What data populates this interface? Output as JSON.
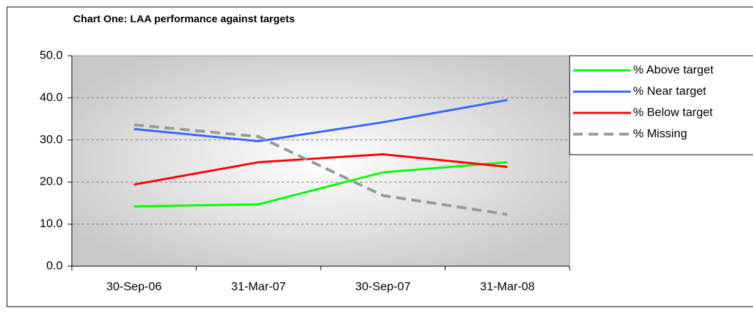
{
  "chart_data": {
    "type": "line",
    "title": "Chart One: LAA performance against targets",
    "categories": [
      "30-Sep-06",
      "31-Mar-07",
      "30-Sep-07",
      "31-Mar-08"
    ],
    "series": [
      {
        "name": "% Above target",
        "color": "#00ff00",
        "values": [
          14.2,
          14.7,
          22.3,
          24.7
        ]
      },
      {
        "name": "% Near target",
        "color": "#3366ff",
        "values": [
          32.6,
          29.7,
          34.2,
          39.5
        ]
      },
      {
        "name": "% Below target",
        "color": "#ff0000",
        "values": [
          19.4,
          24.7,
          26.6,
          23.6
        ]
      },
      {
        "name": "% Missing",
        "color": "#999999",
        "dashed": true,
        "values": [
          33.6,
          30.8,
          16.8,
          12.3
        ]
      }
    ],
    "ylim": [
      0,
      50
    ],
    "yticks": [
      {
        "value": 0,
        "label": "0.0"
      },
      {
        "value": 10,
        "label": "10.0"
      },
      {
        "value": 20,
        "label": "20.0"
      },
      {
        "value": 30,
        "label": "30.0"
      },
      {
        "value": 40,
        "label": "40.0"
      },
      {
        "value": 50,
        "label": "50.0"
      }
    ],
    "grid": true,
    "legend": "right"
  }
}
